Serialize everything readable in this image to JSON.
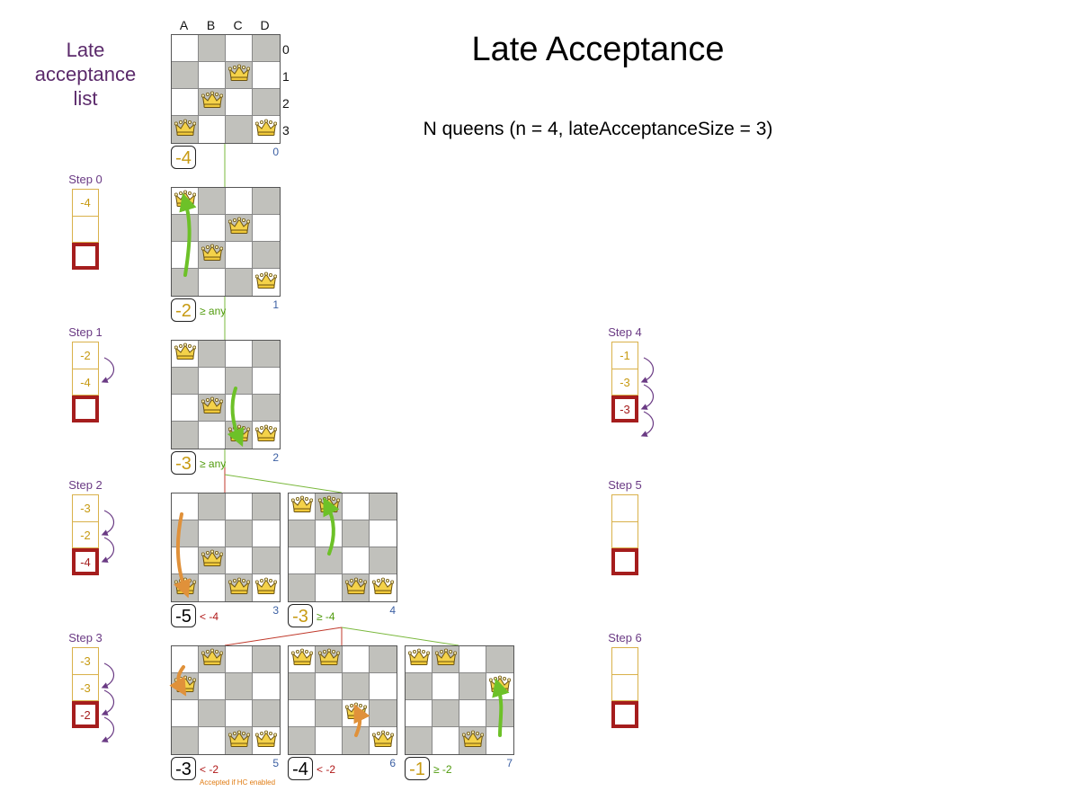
{
  "header": {
    "title": "Late Acceptance",
    "subtitle": "N queens (n = 4, lateAcceptanceSize = 3)",
    "late_acceptance_title": [
      "Late",
      "acceptance",
      "list"
    ]
  },
  "column_labels": [
    "A",
    "B",
    "C",
    "D"
  ],
  "row_labels": [
    "0",
    "1",
    "2",
    "3"
  ],
  "queen_icon": "crown-icon",
  "colors": {
    "accepted": "#c79a12",
    "rejected": "#000000",
    "accept_text": "#4f9a0b",
    "reject_text": "#b01818",
    "step_label": "#6a3a84",
    "list_border": "#a51d1d",
    "good_move": "#6dc128",
    "bad_move": "#e0913a"
  },
  "boards": [
    {
      "id": "0",
      "queens": [
        [
          0,
          3
        ],
        [
          1,
          2
        ],
        [
          2,
          1
        ],
        [
          3,
          3
        ]
      ],
      "score": "-4",
      "accepted": true,
      "condition": ""
    },
    {
      "id": "1",
      "queens": [
        [
          0,
          0
        ],
        [
          1,
          2
        ],
        [
          2,
          1
        ],
        [
          3,
          3
        ]
      ],
      "score": "-2",
      "accepted": true,
      "condition": "≥ any"
    },
    {
      "id": "2",
      "queens": [
        [
          0,
          0
        ],
        [
          1,
          2
        ],
        [
          2,
          3
        ],
        [
          3,
          3
        ]
      ],
      "score": "-3",
      "accepted": true,
      "condition": "≥ any"
    },
    {
      "id": "3",
      "queens": [
        [
          0,
          3
        ],
        [
          1,
          2
        ],
        [
          2,
          3
        ],
        [
          3,
          3
        ]
      ],
      "score": "-5",
      "accepted": false,
      "condition": "< -4"
    },
    {
      "id": "4",
      "queens": [
        [
          0,
          0
        ],
        [
          1,
          0
        ],
        [
          2,
          3
        ],
        [
          3,
          3
        ]
      ],
      "score": "-3",
      "accepted": true,
      "condition": "≥ -4"
    },
    {
      "id": "5",
      "queens": [
        [
          0,
          1
        ],
        [
          1,
          0
        ],
        [
          2,
          3
        ],
        [
          3,
          3
        ]
      ],
      "score": "-3",
      "accepted": false,
      "condition": "< -2",
      "note": "Accepted if HC enabled"
    },
    {
      "id": "6",
      "queens": [
        [
          0,
          0
        ],
        [
          1,
          0
        ],
        [
          2,
          2
        ],
        [
          3,
          3
        ]
      ],
      "score": "-4",
      "accepted": false,
      "condition": "< -2"
    },
    {
      "id": "7",
      "queens": [
        [
          0,
          0
        ],
        [
          1,
          0
        ],
        [
          2,
          3
        ],
        [
          3,
          1
        ]
      ],
      "score": "-1",
      "accepted": true,
      "condition": "≥ -2"
    }
  ],
  "steps": [
    {
      "label": "Step 0",
      "values": [
        "-4",
        "",
        ""
      ]
    },
    {
      "label": "Step 1",
      "values": [
        "-2",
        "-4",
        ""
      ]
    },
    {
      "label": "Step 2",
      "values": [
        "-3",
        "-2",
        "-4"
      ]
    },
    {
      "label": "Step 3",
      "values": [
        "-3",
        "-3",
        "-2"
      ]
    },
    {
      "label": "Step 4",
      "values": [
        "-1",
        "-3",
        "-3"
      ]
    },
    {
      "label": "Step 5",
      "values": [
        "",
        "",
        ""
      ]
    },
    {
      "label": "Step 6",
      "values": [
        "",
        "",
        ""
      ]
    }
  ]
}
